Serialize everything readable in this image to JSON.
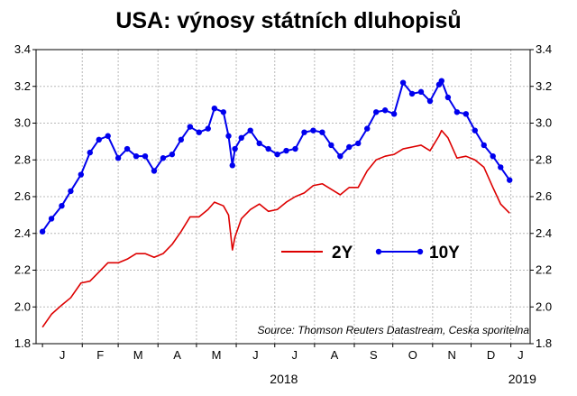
{
  "chart_data": {
    "type": "line",
    "title": "USA: výnosy státních dluhopisů",
    "source": "Source: Thomson Reuters Datastream, Ceska sporitelna",
    "ylim": [
      1.8,
      3.4
    ],
    "yticks": [
      "1.8",
      "2.0",
      "2.2",
      "2.4",
      "2.6",
      "2.8",
      "3.0",
      "3.2",
      "3.4"
    ],
    "xlim": [
      "2018-01-01",
      "2018-12-31"
    ],
    "months": [
      "J",
      "F",
      "M",
      "A",
      "M",
      "J",
      "J",
      "A",
      "S",
      "O",
      "N",
      "D",
      "J"
    ],
    "year_labels": [
      "2018",
      "2019"
    ],
    "grid": true,
    "legend_position": "middle-right",
    "colors": {
      "2Y": "#dd0000",
      "10Y": "#0000ee"
    },
    "series": [
      {
        "name": "2Y",
        "marker": "none",
        "points": [
          [
            "2018-01-01",
            1.89
          ],
          [
            "2018-01-08",
            1.96
          ],
          [
            "2018-01-16",
            2.01
          ],
          [
            "2018-01-23",
            2.05
          ],
          [
            "2018-01-31",
            2.13
          ],
          [
            "2018-02-07",
            2.14
          ],
          [
            "2018-02-14",
            2.19
          ],
          [
            "2018-02-21",
            2.24
          ],
          [
            "2018-03-01",
            2.24
          ],
          [
            "2018-03-08",
            2.26
          ],
          [
            "2018-03-15",
            2.29
          ],
          [
            "2018-03-22",
            2.29
          ],
          [
            "2018-03-29",
            2.27
          ],
          [
            "2018-04-05",
            2.29
          ],
          [
            "2018-04-12",
            2.34
          ],
          [
            "2018-04-19",
            2.41
          ],
          [
            "2018-04-26",
            2.49
          ],
          [
            "2018-05-03",
            2.49
          ],
          [
            "2018-05-10",
            2.53
          ],
          [
            "2018-05-15",
            2.57
          ],
          [
            "2018-05-22",
            2.55
          ],
          [
            "2018-05-26",
            2.5
          ],
          [
            "2018-05-29",
            2.31
          ],
          [
            "2018-05-31",
            2.38
          ],
          [
            "2018-06-05",
            2.48
          ],
          [
            "2018-06-12",
            2.53
          ],
          [
            "2018-06-19",
            2.56
          ],
          [
            "2018-06-26",
            2.52
          ],
          [
            "2018-07-03",
            2.53
          ],
          [
            "2018-07-10",
            2.57
          ],
          [
            "2018-07-17",
            2.6
          ],
          [
            "2018-07-24",
            2.62
          ],
          [
            "2018-07-31",
            2.66
          ],
          [
            "2018-08-07",
            2.67
          ],
          [
            "2018-08-14",
            2.64
          ],
          [
            "2018-08-21",
            2.61
          ],
          [
            "2018-08-28",
            2.65
          ],
          [
            "2018-09-04",
            2.65
          ],
          [
            "2018-09-11",
            2.74
          ],
          [
            "2018-09-18",
            2.8
          ],
          [
            "2018-09-25",
            2.82
          ],
          [
            "2018-10-02",
            2.83
          ],
          [
            "2018-10-09",
            2.86
          ],
          [
            "2018-10-16",
            2.87
          ],
          [
            "2018-10-23",
            2.88
          ],
          [
            "2018-10-30",
            2.85
          ],
          [
            "2018-11-06",
            2.93
          ],
          [
            "2018-11-08",
            2.96
          ],
          [
            "2018-11-13",
            2.92
          ],
          [
            "2018-11-20",
            2.81
          ],
          [
            "2018-11-27",
            2.82
          ],
          [
            "2018-12-04",
            2.8
          ],
          [
            "2018-12-11",
            2.76
          ],
          [
            "2018-12-18",
            2.65
          ],
          [
            "2018-12-24",
            2.56
          ],
          [
            "2018-12-31",
            2.51
          ]
        ]
      },
      {
        "name": "10Y",
        "marker": "circle",
        "points": [
          [
            "2018-01-01",
            2.41
          ],
          [
            "2018-01-08",
            2.48
          ],
          [
            "2018-01-16",
            2.55
          ],
          [
            "2018-01-23",
            2.63
          ],
          [
            "2018-01-31",
            2.72
          ],
          [
            "2018-02-07",
            2.84
          ],
          [
            "2018-02-14",
            2.91
          ],
          [
            "2018-02-21",
            2.93
          ],
          [
            "2018-03-01",
            2.81
          ],
          [
            "2018-03-08",
            2.86
          ],
          [
            "2018-03-15",
            2.82
          ],
          [
            "2018-03-22",
            2.82
          ],
          [
            "2018-03-29",
            2.74
          ],
          [
            "2018-04-05",
            2.81
          ],
          [
            "2018-04-12",
            2.83
          ],
          [
            "2018-04-19",
            2.91
          ],
          [
            "2018-04-26",
            2.98
          ],
          [
            "2018-05-03",
            2.95
          ],
          [
            "2018-05-10",
            2.97
          ],
          [
            "2018-05-15",
            3.08
          ],
          [
            "2018-05-22",
            3.06
          ],
          [
            "2018-05-26",
            2.93
          ],
          [
            "2018-05-29",
            2.77
          ],
          [
            "2018-05-31",
            2.86
          ],
          [
            "2018-06-05",
            2.92
          ],
          [
            "2018-06-12",
            2.96
          ],
          [
            "2018-06-19",
            2.89
          ],
          [
            "2018-06-26",
            2.86
          ],
          [
            "2018-07-03",
            2.83
          ],
          [
            "2018-07-10",
            2.85
          ],
          [
            "2018-07-17",
            2.86
          ],
          [
            "2018-07-24",
            2.95
          ],
          [
            "2018-07-31",
            2.96
          ],
          [
            "2018-08-07",
            2.95
          ],
          [
            "2018-08-14",
            2.88
          ],
          [
            "2018-08-21",
            2.82
          ],
          [
            "2018-08-28",
            2.87
          ],
          [
            "2018-09-04",
            2.89
          ],
          [
            "2018-09-11",
            2.97
          ],
          [
            "2018-09-18",
            3.06
          ],
          [
            "2018-09-25",
            3.07
          ],
          [
            "2018-10-02",
            3.05
          ],
          [
            "2018-10-09",
            3.22
          ],
          [
            "2018-10-16",
            3.16
          ],
          [
            "2018-10-23",
            3.17
          ],
          [
            "2018-10-30",
            3.12
          ],
          [
            "2018-11-06",
            3.21
          ],
          [
            "2018-11-08",
            3.23
          ],
          [
            "2018-11-13",
            3.14
          ],
          [
            "2018-11-20",
            3.06
          ],
          [
            "2018-11-27",
            3.05
          ],
          [
            "2018-12-04",
            2.96
          ],
          [
            "2018-12-11",
            2.88
          ],
          [
            "2018-12-18",
            2.82
          ],
          [
            "2018-12-24",
            2.76
          ],
          [
            "2018-12-31",
            2.69
          ]
        ]
      }
    ]
  }
}
